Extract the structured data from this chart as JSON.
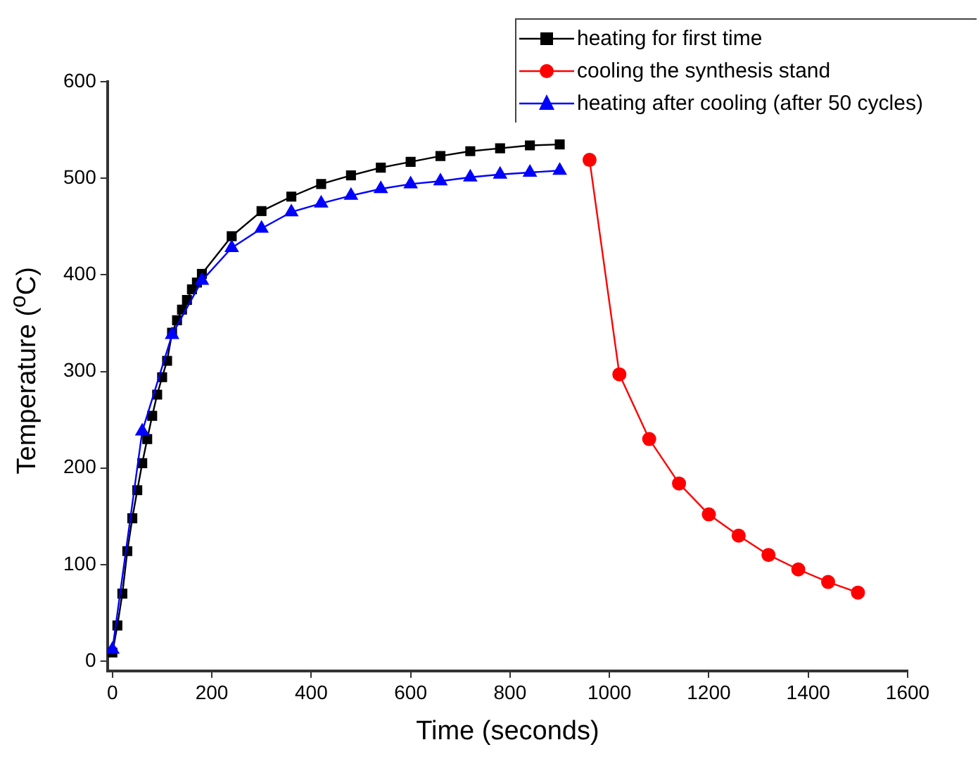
{
  "chart_data": {
    "type": "line",
    "xlabel": "Time (seconds)",
    "ylabel": "Temperature ($^{o}$C)",
    "xlim": [
      -10,
      1600
    ],
    "ylim": [
      -10,
      600
    ],
    "xticks": [
      0,
      200,
      400,
      600,
      800,
      1000,
      1200,
      1400,
      1600
    ],
    "yticks": [
      0,
      100,
      200,
      300,
      400,
      500,
      600
    ],
    "grid": false,
    "legend": "top right",
    "line_style": "solid",
    "series": [
      {
        "name": "heating for first time",
        "color": "#000000",
        "marker": "square",
        "x": [
          0,
          10,
          20,
          30,
          40,
          50,
          60,
          70,
          80,
          90,
          100,
          110,
          120,
          130,
          140,
          150,
          160,
          170,
          180,
          240,
          300,
          360,
          420,
          480,
          540,
          600,
          660,
          720,
          780,
          840,
          900
        ],
        "values": [
          9,
          37,
          70,
          114,
          148,
          177,
          205,
          230,
          254,
          276,
          294,
          311,
          340,
          353,
          364,
          374,
          385,
          392,
          401,
          440,
          466,
          481,
          494,
          503,
          511,
          517,
          523,
          528,
          531,
          534,
          535
        ]
      },
      {
        "name": "cooling the synthesis stand",
        "color": "#ff0000",
        "marker": "circle",
        "x": [
          960,
          1020,
          1080,
          1140,
          1200,
          1260,
          1320,
          1380,
          1440,
          1500
        ],
        "values": [
          519,
          297,
          230,
          184,
          152,
          130,
          110,
          95,
          82,
          71
        ]
      },
      {
        "name": "heating after cooling (after 50 cycles)",
        "color": "#0000ff",
        "marker": "triangle",
        "x": [
          0,
          60,
          120,
          180,
          240,
          300,
          360,
          420,
          480,
          540,
          600,
          660,
          720,
          780,
          840,
          900
        ],
        "values": [
          12,
          238,
          338,
          394,
          428,
          448,
          465,
          474,
          482,
          489,
          494,
          497,
          501,
          504,
          506,
          508
        ]
      }
    ]
  }
}
